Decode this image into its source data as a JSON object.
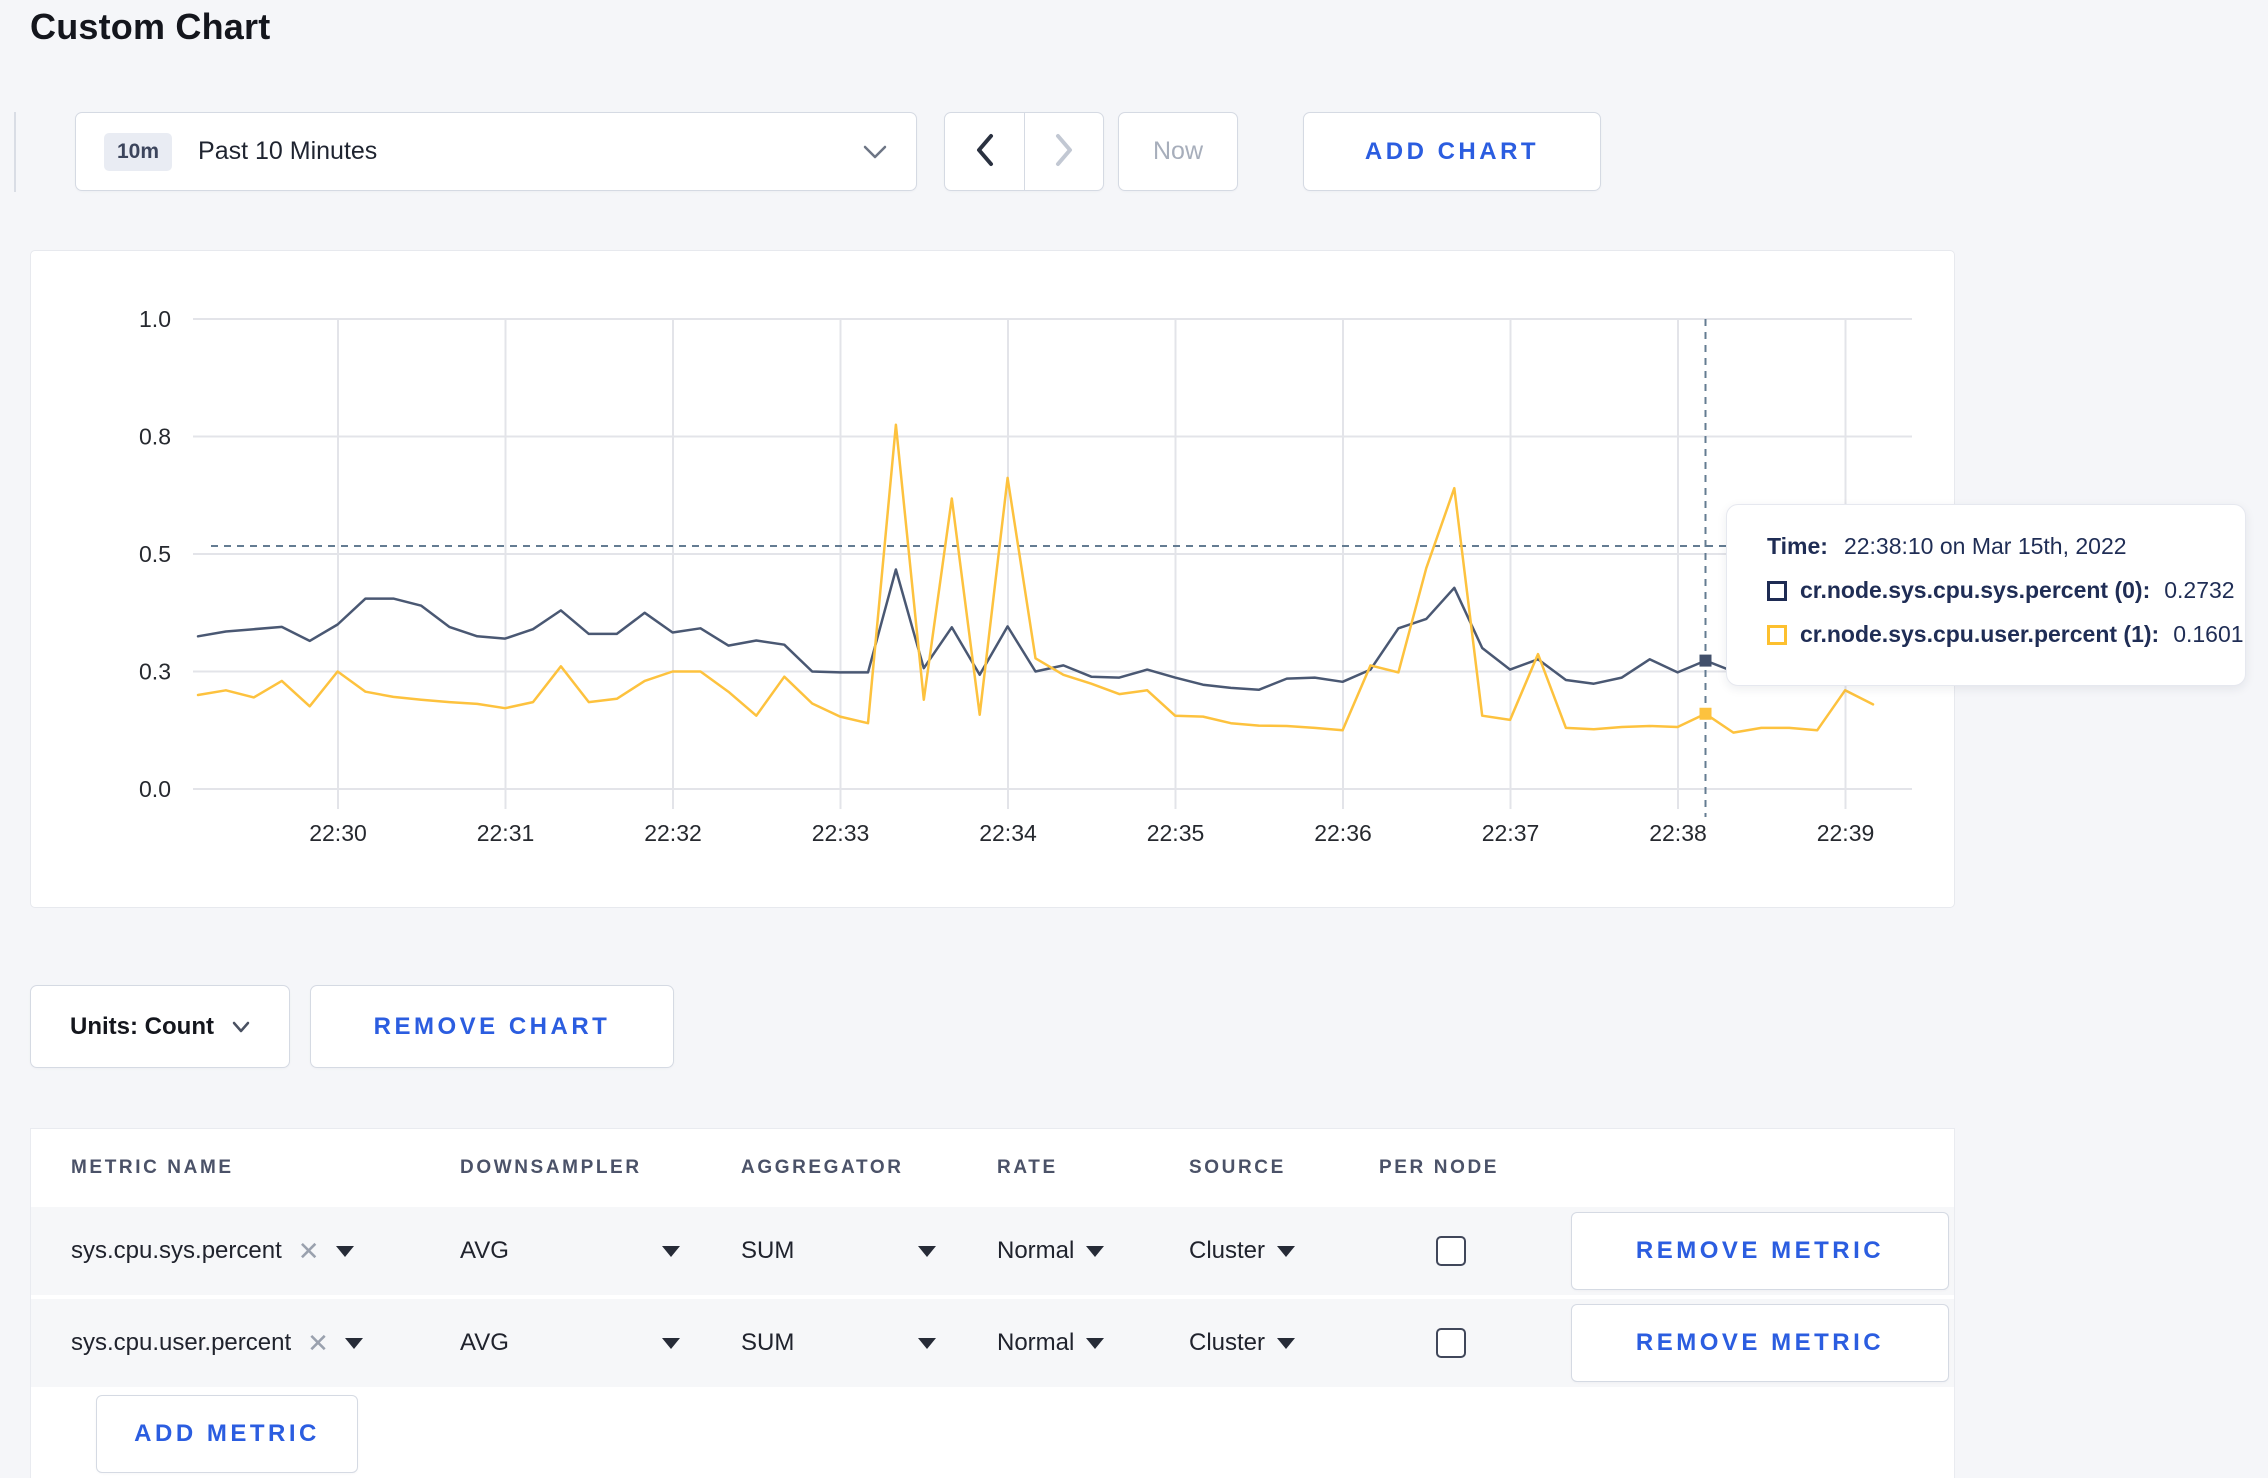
{
  "page": {
    "title": "Custom Chart"
  },
  "toolbar": {
    "time_badge": "10m",
    "time_range_label": "Past 10 Minutes",
    "now_label": "Now",
    "add_chart_label": "ADD CHART"
  },
  "chart_controls": {
    "units_label": "Units: Count",
    "remove_chart_label": "REMOVE CHART"
  },
  "chart_data": {
    "type": "line",
    "title": "",
    "xlabel": "",
    "ylabel": "",
    "grid": true,
    "legend_position": "hover-tooltip",
    "x_ticks": [
      "22:30",
      "22:31",
      "22:32",
      "22:33",
      "22:34",
      "22:35",
      "22:36",
      "22:37",
      "22:38",
      "22:39"
    ],
    "y_ticks": [
      {
        "label": "1.0",
        "v": 1.0
      },
      {
        "label": "0.8",
        "v": 0.75
      },
      {
        "label": "0.5",
        "v": 0.5
      },
      {
        "label": "0.3",
        "v": 0.25
      },
      {
        "label": "0.0",
        "v": 0.0
      }
    ],
    "ylim": [
      0,
      1
    ],
    "start_time": "22:29:10",
    "interval_seconds": 10,
    "hover_index": 54,
    "crosshair_v": 0.517,
    "series": [
      {
        "name": "cr.node.sys.cpu.sys.percent (0)",
        "color": "#4a5873",
        "marker_color": "#42506b",
        "values": [
          0.325,
          0.335,
          0.34,
          0.345,
          0.315,
          0.35,
          0.405,
          0.405,
          0.39,
          0.345,
          0.325,
          0.32,
          0.34,
          0.38,
          0.33,
          0.33,
          0.375,
          0.333,
          0.342,
          0.305,
          0.316,
          0.307,
          0.25,
          0.248,
          0.248,
          0.467,
          0.257,
          0.344,
          0.243,
          0.346,
          0.25,
          0.263,
          0.239,
          0.237,
          0.254,
          0.237,
          0.222,
          0.215,
          0.211,
          0.235,
          0.237,
          0.228,
          0.254,
          0.342,
          0.362,
          0.428,
          0.3,
          0.254,
          0.276,
          0.232,
          0.224,
          0.237,
          0.276,
          0.248,
          0.2732,
          0.25,
          0.26,
          0.27,
          0.265,
          0.28,
          0.29
        ]
      },
      {
        "name": "cr.node.sys.cpu.user.percent (1)",
        "color": "#fdc23e",
        "marker_color": "#fdc23e",
        "values": [
          0.2,
          0.21,
          0.195,
          0.23,
          0.176,
          0.25,
          0.207,
          0.196,
          0.19,
          0.185,
          0.181,
          0.172,
          0.185,
          0.261,
          0.185,
          0.192,
          0.23,
          0.25,
          0.25,
          0.207,
          0.156,
          0.239,
          0.182,
          0.154,
          0.14,
          0.775,
          0.19,
          0.618,
          0.158,
          0.662,
          0.278,
          0.243,
          0.224,
          0.202,
          0.21,
          0.156,
          0.154,
          0.14,
          0.135,
          0.134,
          0.13,
          0.125,
          0.263,
          0.248,
          0.47,
          0.64,
          0.156,
          0.147,
          0.287,
          0.13,
          0.127,
          0.132,
          0.134,
          0.132,
          0.1601,
          0.12,
          0.13,
          0.13,
          0.125,
          0.21,
          0.18
        ]
      }
    ]
  },
  "tooltip": {
    "time_label": "Time:",
    "time_value": "22:38:10 on Mar 15th, 2022",
    "rows": [
      {
        "label": "cr.node.sys.cpu.sys.percent (0):",
        "value": "0.2732",
        "swatch_color": "#1e2b53"
      },
      {
        "label": "cr.node.sys.cpu.user.percent (1):",
        "value": "0.1601",
        "swatch_color": "#fdc02f"
      }
    ]
  },
  "metrics_table": {
    "headers": [
      "METRIC NAME",
      "DOWNSAMPLER",
      "AGGREGATOR",
      "RATE",
      "SOURCE",
      "PER NODE"
    ],
    "rows": [
      {
        "metric": "sys.cpu.sys.percent",
        "downsampler": "AVG",
        "aggregator": "SUM",
        "rate": "Normal",
        "source": "Cluster",
        "per_node_checked": false,
        "remove_label": "REMOVE METRIC"
      },
      {
        "metric": "sys.cpu.user.percent",
        "downsampler": "AVG",
        "aggregator": "SUM",
        "rate": "Normal",
        "source": "Cluster",
        "per_node_checked": false,
        "remove_label": "REMOVE METRIC"
      }
    ],
    "add_metric_label": "ADD METRIC"
  }
}
